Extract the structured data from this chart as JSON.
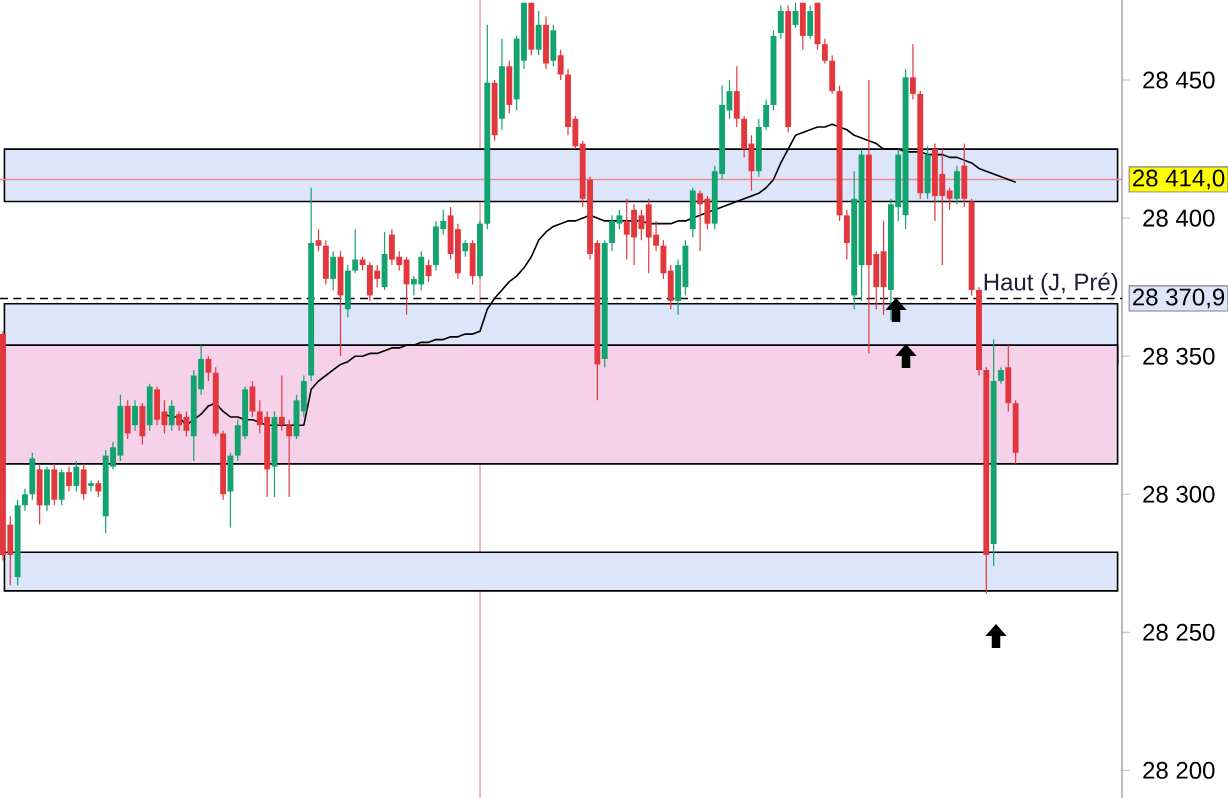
{
  "chart_data": {
    "type": "candlestick",
    "categories": [
      null,
      null,
      null,
      null,
      null,
      null,
      null,
      null,
      null,
      null,
      null,
      null,
      null,
      null,
      null,
      null,
      null,
      null,
      null,
      null,
      null,
      null,
      null,
      null,
      null,
      null,
      null,
      null,
      null,
      null,
      null,
      null,
      null,
      null,
      null,
      null,
      null,
      null,
      null,
      null,
      null,
      null,
      null,
      null,
      null,
      null,
      null,
      null,
      null,
      null,
      null,
      null,
      null,
      null,
      null,
      null,
      null,
      null,
      null,
      null,
      null,
      null,
      null,
      null,
      null,
      null,
      null,
      null,
      null,
      null,
      null,
      null,
      null,
      null,
      null,
      null,
      null,
      null,
      null,
      null,
      null,
      null,
      null,
      null,
      null,
      null,
      null,
      null,
      null,
      null,
      null,
      null,
      null,
      null,
      null,
      null,
      null,
      null,
      null,
      null,
      null,
      null,
      null,
      null,
      null,
      null,
      null,
      null,
      null,
      null,
      null,
      null,
      null,
      null,
      null,
      null,
      null,
      null,
      null,
      null,
      null,
      null,
      null,
      null,
      null,
      null,
      null,
      null,
      null,
      null,
      null,
      null,
      null,
      null,
      null,
      null,
      null,
      null,
      null
    ],
    "ohlc": [
      [
        28358,
        28359,
        28276,
        28278
      ],
      [
        28289,
        28292,
        28267,
        28278
      ],
      [
        28270,
        28298,
        28267,
        28296
      ],
      [
        28296,
        28302,
        28294,
        28300
      ],
      [
        28300,
        28315,
        28298,
        28313
      ],
      [
        28309,
        28311,
        28289,
        28296
      ],
      [
        28296,
        28310,
        28294,
        28309
      ],
      [
        28309,
        28311,
        28296,
        28298
      ],
      [
        28298,
        28309,
        28296,
        28308
      ],
      [
        28308,
        28310,
        28301,
        28303
      ],
      [
        28303,
        28312,
        28301,
        28310
      ],
      [
        28309,
        28311,
        28298,
        28300
      ],
      [
        28303,
        28305,
        28301,
        28304
      ],
      [
        28304,
        28305,
        28299,
        28301
      ],
      [
        28292,
        28316,
        28286,
        28314
      ],
      [
        28310,
        28319,
        28309,
        28317
      ],
      [
        28314,
        28336,
        28312,
        28332
      ],
      [
        28332,
        28334,
        28320,
        28322
      ],
      [
        28325,
        28334,
        28323,
        28332
      ],
      [
        28332,
        28333,
        28318,
        28321
      ],
      [
        28325,
        28340,
        28323,
        28339
      ],
      [
        28338,
        28339,
        28325,
        28327
      ],
      [
        28330,
        28334,
        28322,
        28325
      ],
      [
        28325,
        28334,
        28323,
        28332
      ],
      [
        28329,
        28330,
        28323,
        28325
      ],
      [
        28328,
        28330,
        28321,
        28323
      ],
      [
        28321,
        28345,
        28312,
        28343
      ],
      [
        28338,
        28354,
        28336,
        28349
      ],
      [
        28349,
        28350,
        28341,
        28344
      ],
      [
        28344,
        28346,
        28321,
        28322
      ],
      [
        28322,
        28323,
        28298,
        28300
      ],
      [
        28301,
        28315,
        28288,
        28314
      ],
      [
        28314,
        28327,
        28312,
        28325
      ],
      [
        28321,
        28339,
        28320,
        28338
      ],
      [
        28339,
        28341,
        28328,
        28330
      ],
      [
        28330,
        28334,
        28322,
        28325
      ],
      [
        28328,
        28330,
        28299,
        28309
      ],
      [
        28310,
        28330,
        28299,
        28328
      ],
      [
        28328,
        28343,
        28323,
        28325
      ],
      [
        28325,
        28327,
        28299,
        28321
      ],
      [
        28321,
        28336,
        28320,
        28334
      ],
      [
        28330,
        28343,
        28328,
        28341
      ],
      [
        28343,
        28411,
        28341,
        28391
      ],
      [
        28392,
        28396,
        28388,
        28390
      ],
      [
        28390,
        28392,
        28376,
        28378
      ],
      [
        28378,
        28388,
        28374,
        28386
      ],
      [
        28386,
        28388,
        28350,
        28372
      ],
      [
        28367,
        28383,
        28364,
        28381
      ],
      [
        28381,
        28396,
        28380,
        28385
      ],
      [
        28385,
        28386,
        28381,
        28383
      ],
      [
        28383,
        28384,
        28370,
        28372
      ],
      [
        28381,
        28383,
        28375,
        28378
      ],
      [
        28375,
        28395,
        28374,
        28387
      ],
      [
        28394,
        28396,
        28383,
        28385
      ],
      [
        28386,
        28388,
        28381,
        28383
      ],
      [
        28385,
        28386,
        28365,
        28376
      ],
      [
        28376,
        28379,
        28372,
        28378
      ],
      [
        28376,
        28388,
        28374,
        28386
      ],
      [
        28383,
        28385,
        28377,
        28379
      ],
      [
        28383,
        28399,
        28381,
        28397
      ],
      [
        28396,
        28403,
        28394,
        28399
      ],
      [
        28401,
        28404,
        28385,
        28387
      ],
      [
        28396,
        28398,
        28378,
        28380
      ],
      [
        28388,
        28392,
        28386,
        28391
      ],
      [
        28391,
        28392,
        28376,
        28379
      ],
      [
        28379,
        28399,
        28378,
        28398
      ],
      [
        28398,
        28470,
        28396,
        28449
      ],
      [
        28449,
        28450,
        28428,
        28430
      ],
      [
        28436,
        28465,
        28432,
        28455
      ],
      [
        28455,
        28457,
        28438,
        28441
      ],
      [
        28443,
        28466,
        28439,
        28465
      ],
      [
        28457,
        28478,
        28454,
        28478
      ],
      [
        28478,
        28478,
        28459,
        28461
      ],
      [
        28461,
        28475,
        28459,
        28470
      ],
      [
        28470,
        28473,
        28454,
        28456
      ],
      [
        28457,
        28470,
        28455,
        28468
      ],
      [
        28459,
        28461,
        28450,
        28452
      ],
      [
        28452,
        28454,
        28430,
        28433
      ],
      [
        28436,
        28437,
        28425,
        28426
      ],
      [
        28427,
        28428,
        28404,
        28407
      ],
      [
        28414,
        28415,
        28385,
        28387
      ],
      [
        28391,
        28392,
        28334,
        28347
      ],
      [
        28349,
        28392,
        28346,
        28391
      ],
      [
        28391,
        28401,
        28388,
        28399
      ],
      [
        28398,
        28403,
        28396,
        28401
      ],
      [
        28399,
        28407,
        28385,
        28394
      ],
      [
        28403,
        28405,
        28383,
        28393
      ],
      [
        28401,
        28403,
        28392,
        28396
      ],
      [
        28405,
        28407,
        28380,
        28393
      ],
      [
        28394,
        28399,
        28388,
        28390
      ],
      [
        28390,
        28392,
        28378,
        28380
      ],
      [
        28381,
        28383,
        28367,
        28370
      ],
      [
        28370,
        28385,
        28365,
        28383
      ],
      [
        28375,
        28392,
        28372,
        28390
      ],
      [
        28396,
        28411,
        28393,
        28410
      ],
      [
        28409,
        28410,
        28388,
        28405
      ],
      [
        28407,
        28408,
        28396,
        28398
      ],
      [
        28398,
        28419,
        28396,
        28417
      ],
      [
        28416,
        28448,
        28414,
        28441
      ],
      [
        28439,
        28450,
        28436,
        28446
      ],
      [
        28446,
        28455,
        28433,
        28436
      ],
      [
        28436,
        28437,
        28422,
        28425
      ],
      [
        28427,
        28430,
        28410,
        28417
      ],
      [
        28417,
        28436,
        28415,
        28433
      ],
      [
        28433,
        28443,
        28432,
        28441
      ],
      [
        28441,
        28468,
        28439,
        28466
      ],
      [
        28467,
        28477,
        28465,
        28475
      ],
      [
        28475,
        28477,
        28431,
        28433
      ],
      [
        28470,
        28478,
        28469,
        28475
      ],
      [
        28478,
        28478,
        28461,
        28466
      ],
      [
        28466,
        28477,
        28465,
        28475
      ],
      [
        28478,
        28478,
        28461,
        28463
      ],
      [
        28463,
        28465,
        28456,
        28457
      ],
      [
        28457,
        28459,
        28445,
        28446
      ],
      [
        28446,
        28448,
        28399,
        28401
      ],
      [
        28401,
        28403,
        28385,
        28391
      ],
      [
        28372,
        28417,
        28367,
        28407
      ],
      [
        28383,
        28425,
        28370,
        28423
      ],
      [
        28423,
        28450,
        28351,
        28383
      ],
      [
        28387,
        28388,
        28367,
        28375
      ],
      [
        28388,
        28399,
        28365,
        28375
      ],
      [
        28374,
        28407,
        28363,
        28405
      ],
      [
        28404,
        28425,
        28399,
        28423
      ],
      [
        28401,
        28454,
        28396,
        28451
      ],
      [
        28451,
        28463,
        28443,
        28445
      ],
      [
        28445,
        28446,
        28407,
        28409
      ],
      [
        28409,
        28426,
        28407,
        28423
      ],
      [
        28425,
        28427,
        28399,
        28408
      ],
      [
        28416,
        28425,
        28383,
        28408
      ],
      [
        28410,
        28411,
        28403,
        28407
      ],
      [
        28407,
        28419,
        28405,
        28417
      ],
      [
        28419,
        28427,
        28404,
        28407
      ],
      [
        28406,
        28407,
        28372,
        28374
      ],
      [
        28374,
        28375,
        28343,
        28345
      ],
      [
        28345,
        28346,
        28264,
        28278
      ],
      [
        28282,
        28356,
        28274,
        28341
      ],
      [
        28341,
        28346,
        28340,
        28345
      ],
      [
        28346,
        28354,
        28330,
        28333
      ],
      [
        28333,
        28334,
        28311,
        28315
      ]
    ],
    "colors": [
      "#e2383d",
      "#e2383d",
      "#13a36f",
      "#13a36f",
      "#13a36f",
      "#e2383d",
      "#13a36f",
      "#e2383d",
      "#13a36f",
      "#e2383d",
      "#13a36f",
      "#e2383d",
      "#13a36f",
      "#e2383d",
      "#13a36f",
      "#13a36f",
      "#13a36f",
      "#e2383d",
      "#13a36f",
      "#e2383d",
      "#13a36f",
      "#e2383d",
      "#e2383d",
      "#13a36f",
      "#e2383d",
      "#e2383d",
      "#13a36f",
      "#13a36f",
      "#e2383d",
      "#e2383d",
      "#e2383d",
      "#13a36f",
      "#13a36f",
      "#13a36f",
      "#e2383d",
      "#e2383d",
      "#e2383d",
      "#13a36f",
      "#e2383d",
      "#e2383d",
      "#13a36f",
      "#13a36f",
      "#13a36f",
      "#e2383d",
      "#e2383d",
      "#13a36f",
      "#e2383d",
      "#13a36f",
      "#13a36f",
      "#e2383d",
      "#e2383d",
      "#e2383d",
      "#13a36f",
      "#e2383d",
      "#e2383d",
      "#e2383d",
      "#13a36f",
      "#13a36f",
      "#e2383d",
      "#13a36f",
      "#13a36f",
      "#e2383d",
      "#e2383d",
      "#13a36f",
      "#e2383d",
      "#13a36f",
      "#13a36f",
      "#e2383d",
      "#13a36f",
      "#e2383d",
      "#13a36f",
      "#13a36f",
      "#e2383d",
      "#13a36f",
      "#e2383d",
      "#13a36f",
      "#e2383d",
      "#e2383d",
      "#e2383d",
      "#e2383d",
      "#e2383d",
      "#e2383d",
      "#13a36f",
      "#13a36f",
      "#13a36f",
      "#e2383d",
      "#e2383d",
      "#e2383d",
      "#e2383d",
      "#e2383d",
      "#e2383d",
      "#e2383d",
      "#13a36f",
      "#13a36f",
      "#13a36f",
      "#e2383d",
      "#e2383d",
      "#13a36f",
      "#13a36f",
      "#13a36f",
      "#e2383d",
      "#e2383d",
      "#e2383d",
      "#13a36f",
      "#13a36f",
      "#13a36f",
      "#13a36f",
      "#e2383d",
      "#13a36f",
      "#e2383d",
      "#13a36f",
      "#e2383d",
      "#e2383d",
      "#e2383d",
      "#e2383d",
      "#e2383d",
      "#13a36f",
      "#13a36f",
      "#e2383d",
      "#e2383d",
      "#e2383d",
      "#13a36f",
      "#13a36f",
      "#13a36f",
      "#e2383d",
      "#e2383d",
      "#13a36f",
      "#e2383d",
      "#e2383d",
      "#e2383d",
      "#13a36f",
      "#e2383d",
      "#e2383d",
      "#e2383d",
      "#e2383d",
      "#13a36f",
      "#13a36f",
      "#e2383d",
      "#e2383d"
    ],
    "ylim": [
      28190,
      28479
    ],
    "yticks": [
      {
        "value": 28200,
        "label": "28 200"
      },
      {
        "value": 28250,
        "label": "28 250"
      },
      {
        "value": 28300,
        "label": "28 300"
      },
      {
        "value": 28350,
        "label": "28 350"
      },
      {
        "value": 28400,
        "label": "28 400"
      },
      {
        "value": 28450,
        "label": "28 450"
      }
    ],
    "tick_labels": "y",
    "series": [
      {
        "type": "line",
        "color": "#000000",
        "values": [
          null,
          null,
          null,
          null,
          null,
          null,
          null,
          null,
          null,
          null,
          null,
          null,
          null,
          null,
          null,
          null,
          null,
          null,
          null,
          null,
          null,
          null,
          28329,
          28328,
          28328,
          28325,
          28327,
          28329,
          28332,
          28333,
          28330,
          28328,
          28328,
          28327,
          28327,
          28326,
          28325,
          28325,
          28325,
          28325,
          28325,
          28325,
          28338,
          28341,
          28343,
          28345,
          28347,
          28348,
          28350,
          28350,
          28351,
          28351,
          28352,
          28353,
          28353,
          28354,
          28354,
          28355,
          28355,
          28356,
          28356,
          28357,
          28357,
          28358,
          28358,
          28359,
          28367,
          28371,
          28374,
          28377,
          28379,
          28382,
          28386,
          28392,
          28395,
          28397,
          28398,
          28399,
          28399,
          28400,
          28401,
          28400,
          28399,
          28399,
          28399,
          28399,
          28399,
          28399,
          28398,
          28398,
          28398,
          28398,
          28399,
          28399,
          28400,
          28401,
          28402,
          28403,
          28404,
          28405,
          28406,
          28407,
          28408,
          28409,
          28411,
          28414,
          28420,
          28425,
          28430,
          28431,
          28432,
          28433,
          28433,
          28434,
          28433,
          28432,
          28430,
          28429,
          28428,
          28427,
          28425,
          28425,
          28425,
          28424,
          28424,
          28424,
          28423,
          28423,
          28423,
          28422,
          28422,
          28421,
          28420,
          28418,
          28417,
          28416,
          28415,
          28414,
          28413
        ]
      }
    ],
    "bands": [
      {
        "axis": "y",
        "from": 28265,
        "to": 28279,
        "color": "#dde5fb"
      },
      {
        "axis": "y",
        "from": 28347,
        "to": 28369,
        "color": "#dde5fb"
      },
      {
        "axis": "y",
        "from": 28406,
        "to": 28425,
        "color": "#dde5fb"
      },
      {
        "axis": "y",
        "from": 28311,
        "to": 28354,
        "color": "#f5d2ea"
      }
    ],
    "ref_lines": [
      {
        "axis": "y",
        "value": 28414.0,
        "label": "28 414,0",
        "color": "#f08a8a",
        "line_style": "solid"
      },
      {
        "axis": "y",
        "value": 28370.9,
        "label": "28 370,9",
        "color": "#000000",
        "line_style": "dashed"
      }
    ],
    "annotations": [
      {
        "text": "Haut (J, Pré)",
        "y": 28370.9
      }
    ]
  }
}
